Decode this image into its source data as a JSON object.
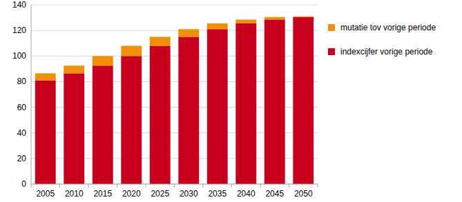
{
  "chart_data": {
    "type": "bar",
    "stacked": true,
    "grid": true,
    "legend": "right",
    "categories": [
      "2005",
      "2010",
      "2015",
      "2020",
      "2025",
      "2030",
      "2035",
      "2040",
      "2045",
      "2050"
    ],
    "series": [
      {
        "name": "indexcijfer vorige periode",
        "color": "#c8001e",
        "values": [
          81,
          86.5,
          92.5,
          100,
          108,
          115,
          121,
          125.5,
          128.5,
          130.5
        ]
      },
      {
        "name": "mutatie tov vorige periode",
        "color": "#f0900a",
        "values": [
          5.5,
          6,
          7.5,
          8,
          7,
          6,
          4.5,
          3,
          2,
          0.5
        ]
      }
    ],
    "ylim": [
      0,
      140
    ],
    "yticks": [
      0,
      20,
      40,
      60,
      80,
      100,
      120,
      140
    ]
  }
}
